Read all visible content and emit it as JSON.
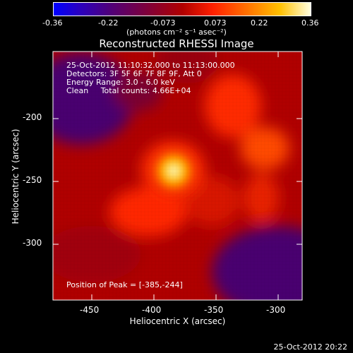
{
  "colorbar": {
    "ticks": [
      "-0.36",
      "-0.22",
      "-0.073",
      "0.073",
      "0.22",
      "0.36"
    ],
    "unit_label": "(photons cm⁻² s⁻¹ asec⁻²)"
  },
  "title": "Reconstructed RHESSI Image",
  "info": {
    "line1": "25-Oct-2012 11:10:32.000 to 11:13:00.000",
    "line2": "Detectors: 3F 5F 6F 7F 8F 9F, Att 0",
    "line3": "Energy Range: 3.0 - 6.0 keV",
    "line4": "Clean     Total counts: 4.66E+04"
  },
  "peak": "Position of Peak = [-385,-244]",
  "axes": {
    "xlabel": "Heliocentric X (arcsec)",
    "ylabel": "Heliocentric Y (arcsec)",
    "xticks": [
      "-450",
      "-400",
      "-350",
      "-300"
    ],
    "yticks": [
      "-200",
      "-250",
      "-300"
    ]
  },
  "timestamp": "25-Oct-2012 20:22",
  "colors": {
    "background": "#000000",
    "colormap": [
      "#0000ff",
      "#4b0082",
      "#b00000",
      "#ff3000",
      "#ffb000",
      "#ffffe0"
    ]
  }
}
